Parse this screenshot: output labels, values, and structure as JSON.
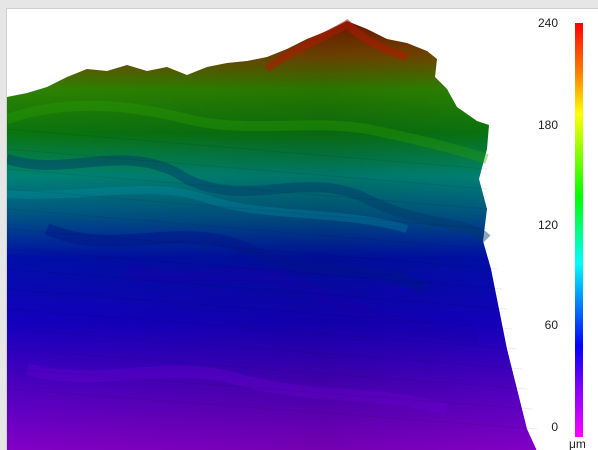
{
  "colorbar": {
    "ticks": [
      {
        "label": "240",
        "value": 240
      },
      {
        "label": "180",
        "value": 180
      },
      {
        "label": "120",
        "value": 120
      },
      {
        "label": "60",
        "value": 60
      },
      {
        "label": "0",
        "value": 0
      }
    ],
    "min": 0,
    "max": 240,
    "unit": "μm",
    "colors": [
      "#ff0000",
      "#ff8000",
      "#ffff00",
      "#00ff00",
      "#00ffff",
      "#0000ff",
      "#8000ff",
      "#ff00ff"
    ]
  }
}
